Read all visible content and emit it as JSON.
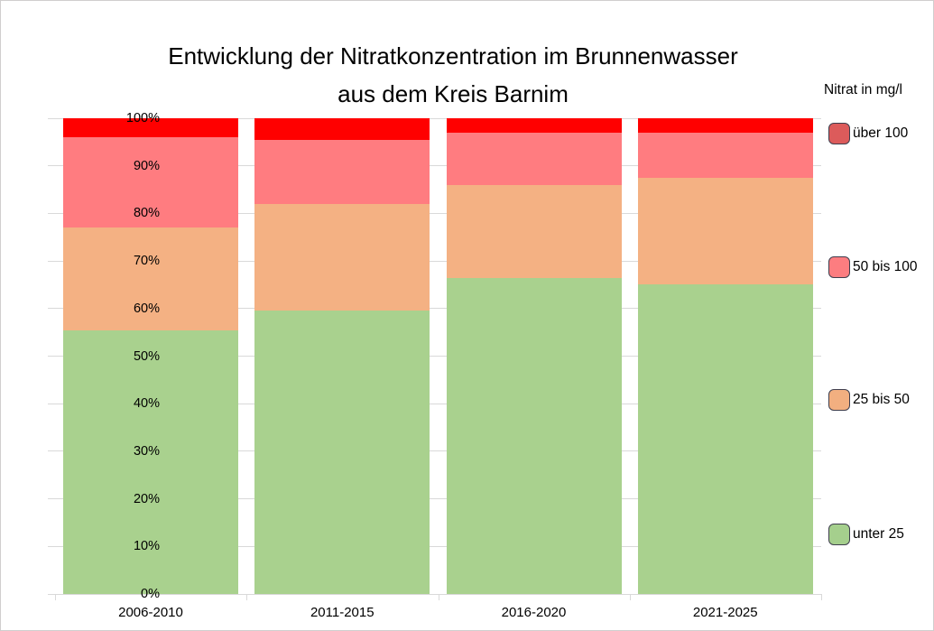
{
  "title": {
    "line1": "Entwicklung der Nitratkonzentration im Brunnenwasser",
    "line2": "aus dem Kreis Barnim"
  },
  "legend": {
    "title": "Nitrat in mg/l",
    "items": [
      {
        "label": "über 100",
        "swatch_color": "#DC5B5B"
      },
      {
        "label": "50 bis 100",
        "swatch_color": "#FC7D80"
      },
      {
        "label": "25 bis 50",
        "swatch_color": "#F2AF80"
      },
      {
        "label": "unter 25",
        "swatch_color": "#A5CF8D"
      }
    ],
    "swatch_border_color": "#3F3F4E"
  },
  "chart_data": {
    "type": "bar",
    "stacked": true,
    "percent_stacked": true,
    "title": "Entwicklung der Nitratkonzentration im Brunnenwasser aus dem Kreis Barnim",
    "categories": [
      "2006-2010",
      "2011-2015",
      "2016-2020",
      "2021-2025"
    ],
    "series": [
      {
        "name": "unter 25",
        "color": "#A9D18E",
        "values": [
          55.5,
          59.5,
          66.5,
          65.0
        ]
      },
      {
        "name": "25 bis 50",
        "color": "#F4B183",
        "values": [
          21.5,
          22.5,
          19.5,
          22.5
        ]
      },
      {
        "name": "50 bis 100",
        "color": "#FF7C80",
        "values": [
          19.0,
          13.5,
          11.0,
          9.5
        ]
      },
      {
        "name": "über 100",
        "color": "#FF0000",
        "values": [
          4.0,
          4.5,
          3.0,
          3.0
        ]
      }
    ],
    "xlabel": "",
    "ylabel": "",
    "ylim": [
      0,
      100
    ],
    "y_tick_labels": [
      "0%",
      "10%",
      "20%",
      "30%",
      "40%",
      "50%",
      "60%",
      "70%",
      "80%",
      "90%",
      "100%"
    ],
    "grid": true,
    "grid_color": "#D9D9D9",
    "legend_position": "right",
    "legend_title": "Nitrat in mg/l"
  },
  "colors": {
    "background": "#FFFFFF",
    "frame_border": "#D0CECE",
    "text": "#000000"
  }
}
